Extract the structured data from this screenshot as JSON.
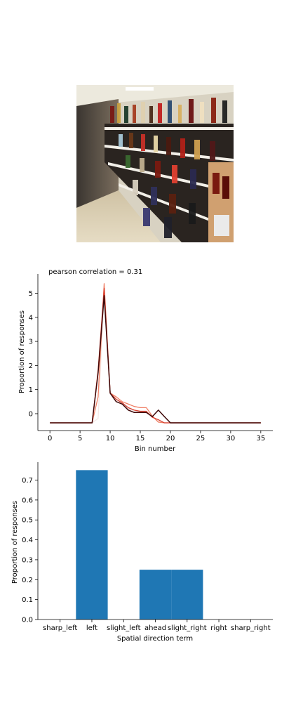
{
  "photo": {
    "alt": "liquor store shelves"
  },
  "chart_data": [
    {
      "type": "line",
      "title": "pearson correlation = 0.31",
      "xlabel": "Bin number",
      "ylabel": "Proportion of responses",
      "xlim": [
        -2,
        37
      ],
      "ylim": [
        -0.7,
        5.8
      ],
      "xticks": [
        0,
        5,
        10,
        15,
        20,
        25,
        30,
        35
      ],
      "yticks": [
        0,
        1,
        2,
        3,
        4,
        5
      ],
      "grid": false,
      "x": [
        0,
        1,
        2,
        3,
        4,
        5,
        6,
        7,
        8,
        9,
        10,
        11,
        12,
        13,
        14,
        15,
        16,
        17,
        18,
        19,
        20,
        21,
        22,
        23,
        24,
        25,
        26,
        27,
        28,
        29,
        30,
        31,
        32,
        33,
        34,
        35
      ],
      "series": [
        {
          "color": "#f5e8e5",
          "values": [
            -0.38,
            -0.38,
            -0.38,
            -0.38,
            -0.38,
            -0.38,
            -0.38,
            -0.38,
            -0.2,
            5.0,
            0.95,
            0.6,
            0.4,
            0.2,
            0.1,
            0.1,
            0.05,
            -0.1,
            -0.3,
            -0.38,
            -0.38,
            -0.38,
            -0.38,
            -0.38,
            -0.38,
            -0.38,
            -0.38,
            -0.38,
            -0.38,
            -0.38,
            -0.38,
            -0.38,
            -0.38,
            -0.38,
            -0.38,
            -0.38
          ]
        },
        {
          "color": "#f08066",
          "values": [
            -0.38,
            -0.38,
            -0.38,
            -0.38,
            -0.38,
            -0.38,
            -0.38,
            -0.38,
            0.7,
            5.4,
            0.85,
            0.7,
            0.5,
            0.4,
            0.3,
            0.25,
            0.25,
            -0.1,
            -0.35,
            -0.38,
            -0.38,
            -0.38,
            -0.38,
            -0.38,
            -0.38,
            -0.38,
            -0.38,
            -0.38,
            -0.38,
            -0.38,
            -0.38,
            -0.38,
            -0.38,
            -0.38,
            -0.38,
            -0.38
          ]
        },
        {
          "color": "#d84030",
          "values": [
            -0.38,
            -0.38,
            -0.38,
            -0.38,
            -0.38,
            -0.38,
            -0.38,
            -0.38,
            1.8,
            5.2,
            0.85,
            0.6,
            0.45,
            0.25,
            0.15,
            0.1,
            0.1,
            -0.15,
            -0.25,
            -0.38,
            -0.38,
            -0.38,
            -0.38,
            -0.38,
            -0.38,
            -0.38,
            -0.38,
            -0.38,
            -0.38,
            -0.38,
            -0.38,
            -0.38,
            -0.38,
            -0.38,
            -0.38,
            -0.38
          ]
        },
        {
          "color": "#3d0808",
          "values": [
            -0.38,
            -0.38,
            -0.38,
            -0.38,
            -0.38,
            -0.38,
            -0.38,
            -0.38,
            1.7,
            4.9,
            0.85,
            0.5,
            0.4,
            0.15,
            0.05,
            0.05,
            0.05,
            -0.12,
            0.15,
            -0.12,
            -0.38,
            -0.38,
            -0.38,
            -0.38,
            -0.38,
            -0.38,
            -0.38,
            -0.38,
            -0.38,
            -0.38,
            -0.38,
            -0.38,
            -0.38,
            -0.38,
            -0.38,
            -0.38
          ]
        }
      ]
    },
    {
      "type": "bar",
      "xlabel": "Spatial direction term",
      "ylabel": "Proportion of responses",
      "categories": [
        "sharp_left",
        "left",
        "slight_left",
        "ahead",
        "slight_right",
        "right",
        "sharp_right"
      ],
      "values": [
        0.0,
        0.75,
        0.0,
        0.25,
        0.25,
        0.0,
        0.0
      ],
      "ylim": [
        0,
        0.79
      ],
      "yticks": [
        "0.0",
        "0.1",
        "0.2",
        "0.3",
        "0.4",
        "0.5",
        "0.6",
        "0.7"
      ],
      "color": "#1f77b4",
      "grid": false
    }
  ]
}
